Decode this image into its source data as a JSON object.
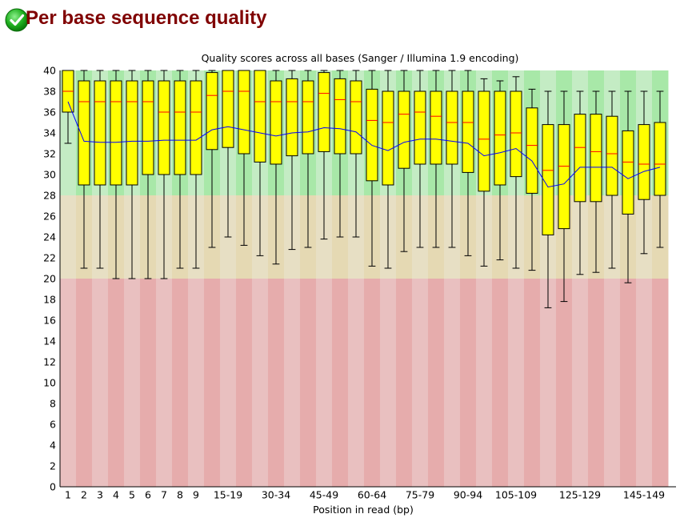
{
  "report": {
    "title": "Per base sequence quality",
    "status_icon": "check-circle-icon",
    "status": "pass"
  },
  "colors": {
    "title": "#800000",
    "good_light": "#c4ecc4",
    "good_dark": "#a8e8a8",
    "ok_light": "#e7dfc4",
    "ok_dark": "#e5d9b3",
    "bad_light": "#e9c0c0",
    "bad_dark": "#e6acac",
    "box_fill": "#ffff00",
    "median": "#ff0000",
    "mean": "#0000ff"
  },
  "chart_data": {
    "type": "boxplot",
    "title": "Quality scores across all bases (Sanger / Illumina 1.9 encoding)",
    "xlabel": "Position in read (bp)",
    "ylabel": "",
    "ylim": [
      0,
      40
    ],
    "y_ticks": [
      "0",
      "2",
      "4",
      "6",
      "8",
      "10",
      "12",
      "14",
      "16",
      "18",
      "20",
      "22",
      "24",
      "26",
      "28",
      "30",
      "32",
      "34",
      "36",
      "38",
      "40"
    ],
    "zones": [
      {
        "name": "good",
        "from": 28,
        "to": 40
      },
      {
        "name": "reasonable",
        "from": 20,
        "to": 28
      },
      {
        "name": "poor",
        "from": 0,
        "to": 20
      }
    ],
    "categories": [
      "1",
      "2",
      "3",
      "4",
      "5",
      "6",
      "7",
      "8",
      "9",
      "10-14",
      "15-19",
      "20-24",
      "25-29",
      "30-34",
      "35-39",
      "40-44",
      "45-49",
      "50-54",
      "55-59",
      "60-64",
      "65-69",
      "70-74",
      "75-79",
      "80-84",
      "85-89",
      "90-94",
      "95-99",
      "100-104",
      "105-109",
      "110-114",
      "115-119",
      "120-124",
      "125-129",
      "130-134",
      "135-139",
      "140-144",
      "145-149",
      "150"
    ],
    "x_tick_labels": [
      "1",
      "2",
      "3",
      "4",
      "5",
      "6",
      "7",
      "8",
      "9",
      "",
      "15-19",
      "",
      "",
      "30-34",
      "",
      "",
      "45-49",
      "",
      "",
      "60-64",
      "",
      "",
      "75-79",
      "",
      "",
      "90-94",
      "",
      "",
      "105-109",
      "",
      "",
      "",
      "125-129",
      "",
      "",
      "",
      "145-149",
      ""
    ],
    "whisker_low": [
      33,
      21,
      21,
      20,
      20,
      20,
      20,
      21,
      21,
      23,
      24,
      23.2,
      22.2,
      21.4,
      22.8,
      23,
      23.8,
      24,
      24,
      21.2,
      21,
      22.6,
      23,
      23,
      23,
      22.2,
      21.2,
      21.8,
      21,
      20.8,
      17.2,
      17.8,
      20.4,
      20.6,
      21,
      19.6,
      22.4,
      23
    ],
    "q1": [
      36,
      29,
      29,
      29,
      29,
      30,
      30,
      30,
      30,
      32.4,
      32.6,
      32,
      31.2,
      31,
      31.8,
      32,
      32.2,
      32,
      32,
      29.4,
      29,
      30.6,
      31,
      31,
      31,
      30.2,
      28.4,
      29,
      29.8,
      28.2,
      24.2,
      24.8,
      27.4,
      27.4,
      28,
      26.2,
      27.6,
      28
    ],
    "median": [
      38,
      37,
      37,
      37,
      37,
      37,
      36,
      36,
      36,
      37.6,
      38,
      38,
      37,
      37,
      37,
      37,
      37.8,
      37.2,
      37,
      35.2,
      35,
      35.8,
      36,
      35.6,
      35,
      35,
      33.4,
      33.8,
      34,
      32.8,
      30.4,
      30.8,
      32.6,
      32.2,
      32,
      31.2,
      31,
      31
    ],
    "q3": [
      40,
      39,
      39,
      39,
      39,
      39,
      39,
      39,
      39,
      39.8,
      40,
      40,
      40,
      39,
      39.2,
      39,
      39.8,
      39.2,
      39,
      38.2,
      38,
      38,
      38,
      38,
      38,
      38,
      38,
      38,
      38,
      36.4,
      34.8,
      34.8,
      35.8,
      35.8,
      35.6,
      34.2,
      34.8,
      35
    ],
    "whisker_high": [
      40,
      40,
      40,
      40,
      40,
      40,
      40,
      40,
      40,
      40,
      40,
      40,
      40,
      40,
      40,
      40,
      40,
      40,
      40,
      40,
      40,
      40,
      40,
      40,
      40,
      40,
      39.2,
      39,
      39.4,
      38.2,
      38,
      38,
      38,
      38,
      38,
      38,
      38,
      38
    ],
    "mean": [
      37,
      33.2,
      33.1,
      33.1,
      33.2,
      33.2,
      33.3,
      33.3,
      33.3,
      34.3,
      34.6,
      34.3,
      34,
      33.7,
      34,
      34.1,
      34.5,
      34.4,
      34.1,
      32.8,
      32.3,
      33.1,
      33.4,
      33.4,
      33.2,
      33,
      31.8,
      32.1,
      32.5,
      31.3,
      28.8,
      29.1,
      30.7,
      30.7,
      30.7,
      29.6,
      30.3,
      30.7
    ]
  }
}
